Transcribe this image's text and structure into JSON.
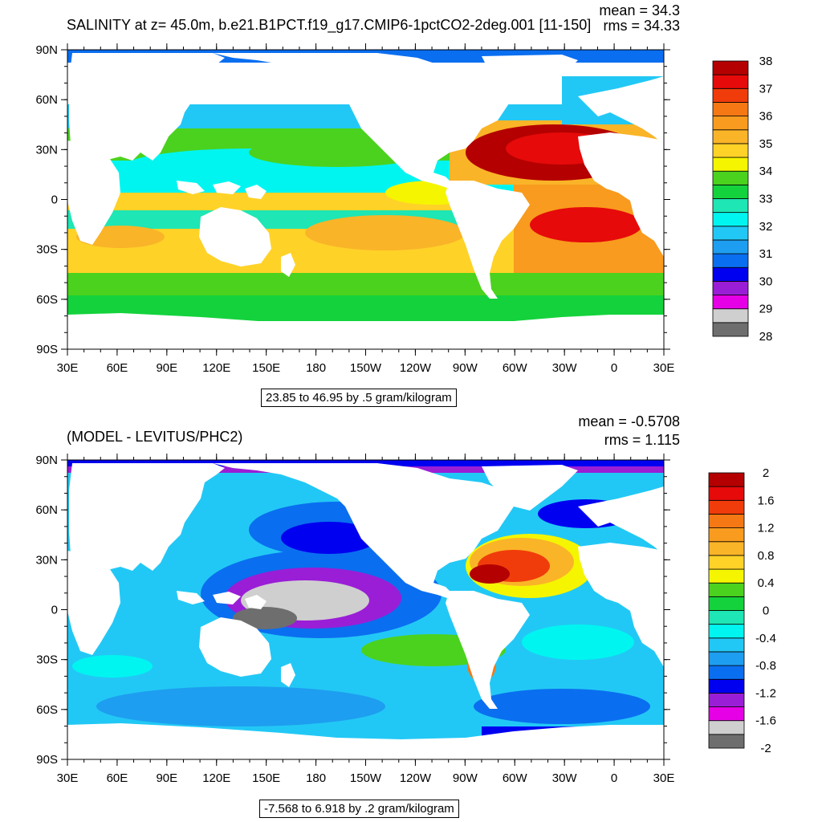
{
  "panel1": {
    "title": "SALINITY at z=  45.0m, b.e21.B1PCT.f19_g17.CMIP6-1pctCO2-2deg.001 [11-150]",
    "mean_text": "mean = 34.3",
    "rms_text": "rms = 34.33",
    "range_text": "23.85 to 46.95 by .5 gram/kilogram",
    "colorbar": {
      "colors": [
        "#6e6e6e",
        "#cfcfcf",
        "#e600e6",
        "#9a1ed6",
        "#0000f0",
        "#0a6ef0",
        "#1e9ef0",
        "#22c8f5",
        "#00f5f0",
        "#1ee6b4",
        "#14d23c",
        "#4bd21e",
        "#f5f500",
        "#ffd228",
        "#fab428",
        "#f89b1e",
        "#f57814",
        "#f03c0a",
        "#e60a0a",
        "#b40000"
      ],
      "labels": [
        "38",
        "37",
        "36",
        "35",
        "34",
        "33",
        "32",
        "31",
        "30",
        "29",
        "28"
      ]
    }
  },
  "panel2": {
    "title": "(MODEL - LEVITUS/PHC2)",
    "mean_text": "mean = -0.5708",
    "rms_text": "rms = 1.115",
    "range_text": "-7.568 to 6.918 by .2 gram/kilogram",
    "colorbar": {
      "colors": [
        "#6e6e6e",
        "#cfcfcf",
        "#e600e6",
        "#9a1ed6",
        "#0000f0",
        "#0a6ef0",
        "#1e9ef0",
        "#22c8f5",
        "#00f5f0",
        "#1ee6b4",
        "#14d23c",
        "#4bd21e",
        "#f5f500",
        "#ffd228",
        "#fab428",
        "#f89b1e",
        "#f57814",
        "#f03c0a",
        "#e60a0a",
        "#b40000"
      ],
      "labels": [
        "2",
        "1.6",
        "1.2",
        "0.8",
        "0.4",
        "0",
        "-0.4",
        "-0.8",
        "-1.2",
        "-1.6",
        "-2"
      ]
    }
  },
  "axes": {
    "lat_labels": [
      "90N",
      "60N",
      "30N",
      "0",
      "30S",
      "60S",
      "90S"
    ],
    "lon_labels": [
      "30E",
      "60E",
      "90E",
      "120E",
      "150E",
      "180",
      "150W",
      "120W",
      "90W",
      "60W",
      "30W",
      "0",
      "30E"
    ]
  }
}
